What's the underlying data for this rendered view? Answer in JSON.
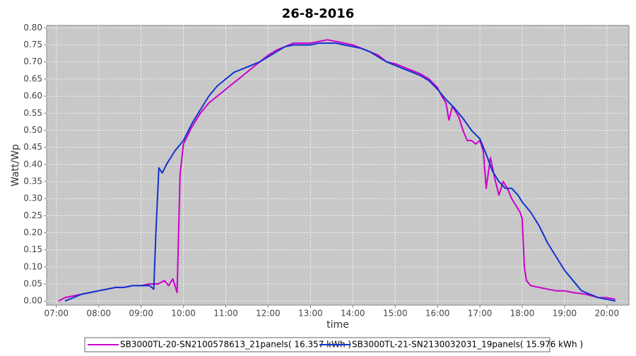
{
  "chart_data": {
    "type": "line",
    "title": "26-8-2016",
    "x_label": "time",
    "y_label": "Watt/Wp",
    "xlim": [
      6.77,
      20.52
    ],
    "ylim": [
      -0.012,
      0.807
    ],
    "grid": true,
    "legend": "bottom",
    "xticks": [
      {
        "value": 7,
        "label": "07:00"
      },
      {
        "value": 8,
        "label": "08:00"
      },
      {
        "value": 9,
        "label": "09:00"
      },
      {
        "value": 10,
        "label": "10:00"
      },
      {
        "value": 11,
        "label": "11:00"
      },
      {
        "value": 12,
        "label": "12:00"
      },
      {
        "value": 13,
        "label": "13:00"
      },
      {
        "value": 14,
        "label": "14:00"
      },
      {
        "value": 15,
        "label": "15:00"
      },
      {
        "value": 16,
        "label": "16:00"
      },
      {
        "value": 17,
        "label": "17:00"
      },
      {
        "value": 18,
        "label": "18:00"
      },
      {
        "value": 19,
        "label": "19:00"
      },
      {
        "value": 20,
        "label": "20:00"
      }
    ],
    "yticks": [
      {
        "value": 0,
        "label": "0.00"
      },
      {
        "value": 0.05,
        "label": "0.05"
      },
      {
        "value": 0.1,
        "label": "0.10"
      },
      {
        "value": 0.15,
        "label": "0.15"
      },
      {
        "value": 0.2,
        "label": "0.20"
      },
      {
        "value": 0.25,
        "label": "0.25"
      },
      {
        "value": 0.3,
        "label": "0.30"
      },
      {
        "value": 0.35,
        "label": "0.35"
      },
      {
        "value": 0.4,
        "label": "0.40"
      },
      {
        "value": 0.45,
        "label": "0.45"
      },
      {
        "value": 0.5,
        "label": "0.50"
      },
      {
        "value": 0.55,
        "label": "0.55"
      },
      {
        "value": 0.6,
        "label": "0.60"
      },
      {
        "value": 0.65,
        "label": "0.65"
      },
      {
        "value": 0.7,
        "label": "0.70"
      },
      {
        "value": 0.75,
        "label": "0.75"
      },
      {
        "value": 0.8,
        "label": "0.80"
      }
    ],
    "series": [
      {
        "name": "SB3000TL-20-SN2100578613_21panels( 16.357 kWh )",
        "color": "#cc00cc",
        "x": [
          7.05,
          7.2,
          7.4,
          7.6,
          7.8,
          8.0,
          8.2,
          8.4,
          8.6,
          8.8,
          9.0,
          9.2,
          9.4,
          9.55,
          9.65,
          9.75,
          9.85,
          9.92,
          10.0,
          10.2,
          10.4,
          10.6,
          10.8,
          11.0,
          11.2,
          11.4,
          11.6,
          11.8,
          12.0,
          12.2,
          12.4,
          12.6,
          12.8,
          13.0,
          13.2,
          13.4,
          13.6,
          13.8,
          14.0,
          14.2,
          14.4,
          14.6,
          14.8,
          15.0,
          15.2,
          15.4,
          15.6,
          15.8,
          16.0,
          16.1,
          16.2,
          16.27,
          16.35,
          16.5,
          16.6,
          16.7,
          16.8,
          16.9,
          17.0,
          17.08,
          17.15,
          17.25,
          17.35,
          17.45,
          17.55,
          17.65,
          17.75,
          17.85,
          17.95,
          18.0,
          18.05,
          18.1,
          18.2,
          18.4,
          18.6,
          18.8,
          19.0,
          19.2,
          19.5,
          19.8,
          20.0,
          20.2
        ],
        "values": [
          0.0,
          0.01,
          0.015,
          0.02,
          0.025,
          0.03,
          0.035,
          0.04,
          0.04,
          0.045,
          0.045,
          0.05,
          0.05,
          0.06,
          0.045,
          0.065,
          0.025,
          0.37,
          0.46,
          0.51,
          0.55,
          0.58,
          0.6,
          0.62,
          0.64,
          0.66,
          0.68,
          0.7,
          0.72,
          0.735,
          0.745,
          0.755,
          0.755,
          0.755,
          0.76,
          0.765,
          0.76,
          0.755,
          0.75,
          0.74,
          0.73,
          0.72,
          0.7,
          0.695,
          0.685,
          0.675,
          0.665,
          0.65,
          0.625,
          0.6,
          0.58,
          0.53,
          0.57,
          0.54,
          0.5,
          0.47,
          0.47,
          0.46,
          0.47,
          0.44,
          0.33,
          0.42,
          0.36,
          0.31,
          0.35,
          0.33,
          0.3,
          0.28,
          0.26,
          0.24,
          0.1,
          0.06,
          0.045,
          0.04,
          0.035,
          0.03,
          0.03,
          0.025,
          0.02,
          0.01,
          0.01,
          0.005
        ]
      },
      {
        "name": "SB3000TL-21-SN2130032031_19panels( 15.976 kWh )",
        "color": "#1133cc",
        "x": [
          7.2,
          7.4,
          7.6,
          7.8,
          8.0,
          8.2,
          8.4,
          8.6,
          8.8,
          9.0,
          9.2,
          9.3,
          9.35,
          9.42,
          9.5,
          9.6,
          9.8,
          10.0,
          10.2,
          10.4,
          10.6,
          10.8,
          11.0,
          11.2,
          11.4,
          11.6,
          11.8,
          12.0,
          12.2,
          12.4,
          12.6,
          12.8,
          13.0,
          13.2,
          13.4,
          13.6,
          13.8,
          14.0,
          14.2,
          14.4,
          14.6,
          14.8,
          15.0,
          15.2,
          15.4,
          15.6,
          15.8,
          16.0,
          16.2,
          16.4,
          16.6,
          16.8,
          17.0,
          17.15,
          17.3,
          17.45,
          17.6,
          17.75,
          17.9,
          18.0,
          18.2,
          18.4,
          18.6,
          18.8,
          19.0,
          19.2,
          19.4,
          19.6,
          19.8,
          20.0,
          20.2
        ],
        "values": [
          0.0,
          0.01,
          0.02,
          0.025,
          0.03,
          0.035,
          0.04,
          0.04,
          0.045,
          0.045,
          0.045,
          0.035,
          0.2,
          0.39,
          0.375,
          0.4,
          0.44,
          0.47,
          0.52,
          0.56,
          0.6,
          0.63,
          0.65,
          0.67,
          0.68,
          0.69,
          0.7,
          0.715,
          0.73,
          0.745,
          0.75,
          0.75,
          0.75,
          0.755,
          0.755,
          0.755,
          0.75,
          0.745,
          0.74,
          0.73,
          0.715,
          0.7,
          0.69,
          0.68,
          0.67,
          0.66,
          0.645,
          0.62,
          0.59,
          0.565,
          0.535,
          0.5,
          0.475,
          0.43,
          0.38,
          0.35,
          0.33,
          0.33,
          0.31,
          0.29,
          0.26,
          0.22,
          0.17,
          0.13,
          0.09,
          0.06,
          0.03,
          0.02,
          0.01,
          0.005,
          0.0
        ]
      }
    ]
  }
}
